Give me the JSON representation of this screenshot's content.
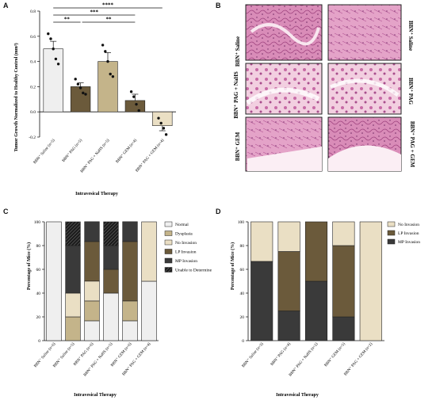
{
  "panels": {
    "a": {
      "letter": "A",
      "chart_data": {
        "type": "bar",
        "ylabel": "Tumor Growth Normalized to Healthy Control (mm³)",
        "xlabel": "Intravesical Therapy",
        "ylim": [
          -0.2,
          0.8
        ],
        "yticks": [
          "-0.2",
          "0.0",
          "0.2",
          "0.4",
          "0.6",
          "0.8"
        ],
        "categories": [
          "BBN⁺ Saline (n=5)",
          "BBN⁺ PAG (n=5)",
          "BBN⁺ PAG + NaHS (n=5)",
          "BBN⁺ GEM (n=4)",
          "BBN⁺ PAG + GEM (n=4)"
        ],
        "values": [
          0.5,
          0.2,
          0.4,
          0.09,
          -0.11
        ],
        "errors": [
          0.06,
          0.03,
          0.07,
          0.05,
          0.04
        ],
        "colors": [
          "#efefef",
          "#6b5a3b",
          "#c4b48a",
          "#6b5a3b",
          "#eadfc4"
        ],
        "points": [
          [
            0.62,
            0.58,
            0.5,
            0.42,
            0.38
          ],
          [
            0.26,
            0.22,
            0.19,
            0.15,
            0.14
          ],
          [
            0.53,
            0.48,
            0.4,
            0.3,
            0.28
          ],
          [
            0.16,
            0.12,
            0.06,
            0.01
          ],
          [
            -0.05,
            -0.09,
            -0.13,
            -0.18
          ]
        ],
        "significance": [
          {
            "from": 0,
            "to": 1,
            "label": "**"
          },
          {
            "from": 1,
            "to": 3,
            "label": "**"
          },
          {
            "from": 0,
            "to": 3,
            "label": "***"
          },
          {
            "from": 0,
            "to": 4,
            "label": "****"
          }
        ]
      }
    },
    "b": {
      "letter": "B",
      "row_labels_left": [
        "BBN⁺ Saline",
        "BBN⁺ PAG + NaHS",
        "BBN⁺ GEM"
      ],
      "row_labels_right": [
        "BBN⁺ Saline",
        "BBN⁺ PAG",
        "BBN⁺ PAG + GEM"
      ]
    },
    "c": {
      "letter": "C",
      "chart_data": {
        "type": "bar",
        "stacked": true,
        "ylabel": "Percentage of Mice (%)",
        "xlabel": "Intravesical Therapy",
        "ylim": [
          0,
          100
        ],
        "yticks": [
          "0",
          "20",
          "40",
          "60",
          "80",
          "100"
        ],
        "categories": [
          "BBN⁻ Saline (n=6)",
          "BBN⁺ Saline (n=5)",
          "BBN⁺ PAG (n=6)",
          "BBN⁺ PAG + NaHS (n=5)",
          "BBN⁺ GEM (n=6)",
          "BBN⁺ PAG + GEM (n=4)"
        ],
        "series": [
          {
            "name": "Normal",
            "color": "#efefef",
            "values": [
              100,
              0,
              16.7,
              40,
              16.7,
              50
            ]
          },
          {
            "name": "Dysplasia",
            "color": "#c4b48a",
            "values": [
              0,
              20,
              16.7,
              0,
              16.7,
              0
            ]
          },
          {
            "name": "No Invasion",
            "color": "#eadfc4",
            "values": [
              0,
              20,
              16.7,
              0,
              0,
              50
            ]
          },
          {
            "name": "LP Invasion",
            "color": "#6b5a3b",
            "values": [
              0,
              0,
              33.3,
              20,
              50,
              0
            ]
          },
          {
            "name": "MP Invasion",
            "color": "#3a3a3a",
            "values": [
              0,
              40,
              16.7,
              20,
              16.7,
              0
            ]
          },
          {
            "name": "Unable to Determine",
            "color": "#1c1c1c",
            "hatch": true,
            "values": [
              0,
              20,
              0,
              20,
              0,
              0
            ]
          }
        ],
        "legend_position": "right"
      }
    },
    "d": {
      "letter": "D",
      "chart_data": {
        "type": "bar",
        "stacked": true,
        "ylabel": "Percentage of Mice (%)",
        "xlabel": "Intravesical Therapy",
        "ylim": [
          0,
          100
        ],
        "yticks": [
          "0",
          "20",
          "40",
          "60",
          "80",
          "100"
        ],
        "categories": [
          "BBN⁺ Saline (n=3)",
          "BBN⁺ PAG (n=4)",
          "BBN⁺ PAG + NaHS (n=2)",
          "BBN⁺ GEM (n=5)",
          "BBN⁺ PAG + GEM (n=2)"
        ],
        "series": [
          {
            "name": "MP Invasion",
            "color": "#3a3a3a",
            "values": [
              66.7,
              25,
              50,
              20,
              0
            ]
          },
          {
            "name": "LP Invasion",
            "color": "#6b5a3b",
            "values": [
              0,
              50,
              50,
              60,
              0
            ]
          },
          {
            "name": "No Invasion",
            "color": "#eadfc4",
            "values": [
              33.3,
              25,
              0,
              20,
              100
            ]
          }
        ],
        "legend_position": "top-right"
      }
    }
  }
}
